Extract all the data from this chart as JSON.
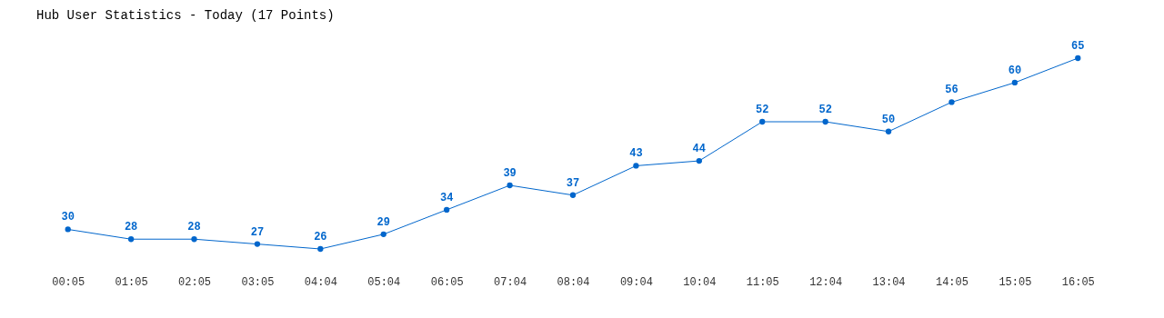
{
  "chart_data": {
    "type": "line",
    "title": "Hub User Statistics - Today (17 Points)",
    "categories": [
      "00:05",
      "01:05",
      "02:05",
      "03:05",
      "04:04",
      "05:04",
      "06:05",
      "07:04",
      "08:04",
      "09:04",
      "10:04",
      "11:05",
      "12:04",
      "13:04",
      "14:05",
      "15:05",
      "16:05"
    ],
    "series": [
      {
        "color": "#0066cc",
        "values": [
          30,
          28,
          28,
          27,
          26,
          29,
          34,
          39,
          37,
          43,
          44,
          52,
          52,
          50,
          56,
          60,
          65
        ]
      }
    ],
    "data_labels": true,
    "marker": "circle",
    "line_style": "solid",
    "grid": false,
    "legend": false
  }
}
